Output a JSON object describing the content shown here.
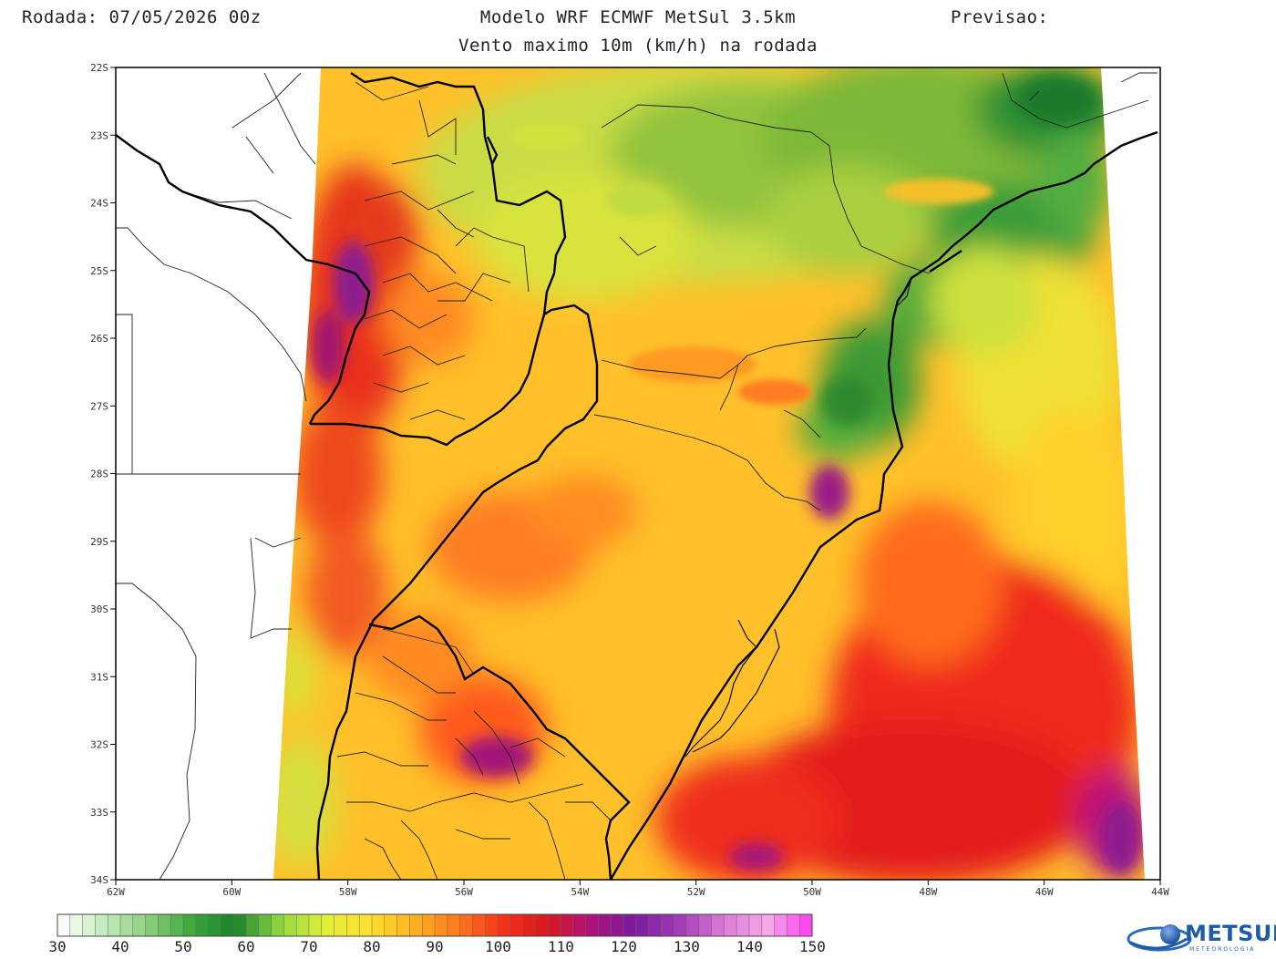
{
  "header": {
    "run": "Rodada: 07/05/2026 00z",
    "model": "Modelo WRF ECMWF MetSul 3.5km",
    "forecast": "Previsao:",
    "subtitle": "Vento maximo 10m (km/h) na rodada"
  },
  "axes": {
    "lat_labels": [
      "22S",
      "23S",
      "24S",
      "25S",
      "26S",
      "27S",
      "28S",
      "29S",
      "30S",
      "31S",
      "32S",
      "33S",
      "34S"
    ],
    "lon_labels": [
      "62W",
      "60W",
      "58W",
      "56W",
      "54W",
      "52W",
      "50W",
      "48W",
      "46W",
      "44W"
    ]
  },
  "colorbar": {
    "labels": [
      "30",
      "40",
      "50",
      "60",
      "70",
      "80",
      "90",
      "100",
      "110",
      "120",
      "130",
      "140",
      "150"
    ],
    "min": 30,
    "max": 150,
    "colors": [
      "#ffffff",
      "#c8ecc0",
      "#8fd07f",
      "#3ea93a",
      "#18822a",
      "#8fd640",
      "#e0f03a",
      "#ffe12e",
      "#ffb321",
      "#ff7a1c",
      "#f7331b",
      "#d8171d",
      "#b2127a",
      "#7c1aa0",
      "#a13bb6",
      "#dc7bd6",
      "#f6a8ea",
      "#ff3cf0"
    ]
  },
  "logo": {
    "name": "METSUL",
    "tagline": "METEOROLOGIA",
    "icon": "globe-swoosh-icon"
  },
  "regions": [
    {
      "name": "north-plateau",
      "color": "#b6d640"
    },
    {
      "name": "coastal-mountains",
      "color": "#3f9a35"
    },
    {
      "name": "western-corridor",
      "color": "#e83b1e"
    },
    {
      "name": "open-ocean",
      "color": "#e52a1c"
    }
  ]
}
